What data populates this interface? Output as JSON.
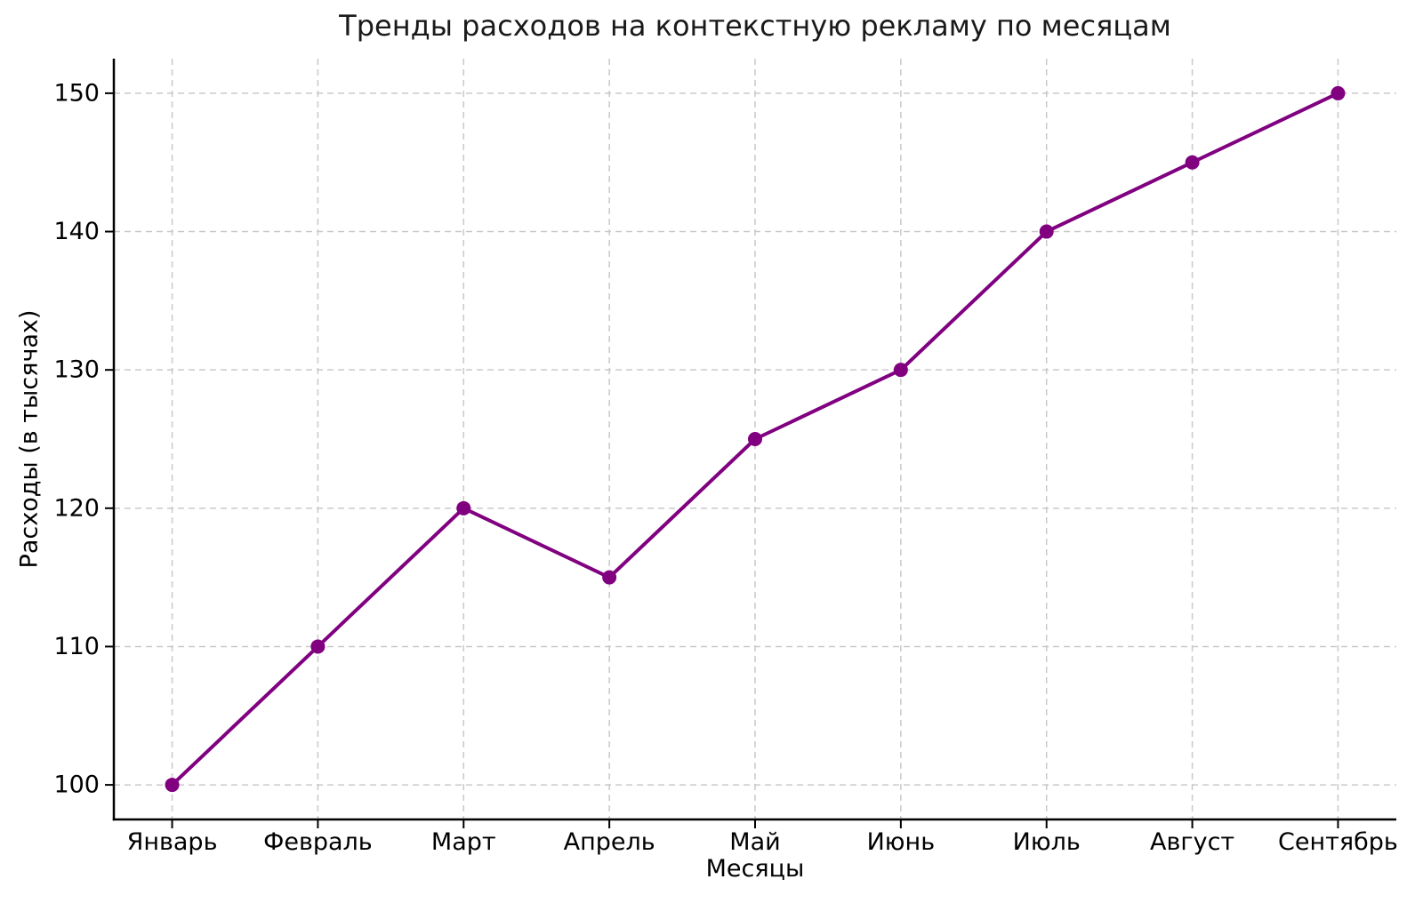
{
  "chart_data": {
    "type": "line",
    "title": "Тренды расходов на контекстную рекламу по месяцам",
    "xlabel": "Месяцы",
    "ylabel": "Расходы (в тысячах)",
    "categories": [
      "Январь",
      "Февраль",
      "Март",
      "Апрель",
      "Май",
      "Июнь",
      "Июль",
      "Август",
      "Сентябрь"
    ],
    "values": [
      100,
      110,
      120,
      115,
      125,
      130,
      140,
      145,
      150
    ],
    "yticks": [
      100,
      110,
      120,
      130,
      140,
      150
    ],
    "ylim": [
      97.5,
      152.5
    ],
    "grid": "dashed",
    "legend": "none",
    "line_color": "#800080",
    "marker": "circle",
    "grid_color": "#c9c9c9",
    "axis_color": "#000000",
    "background": "#ffffff"
  }
}
